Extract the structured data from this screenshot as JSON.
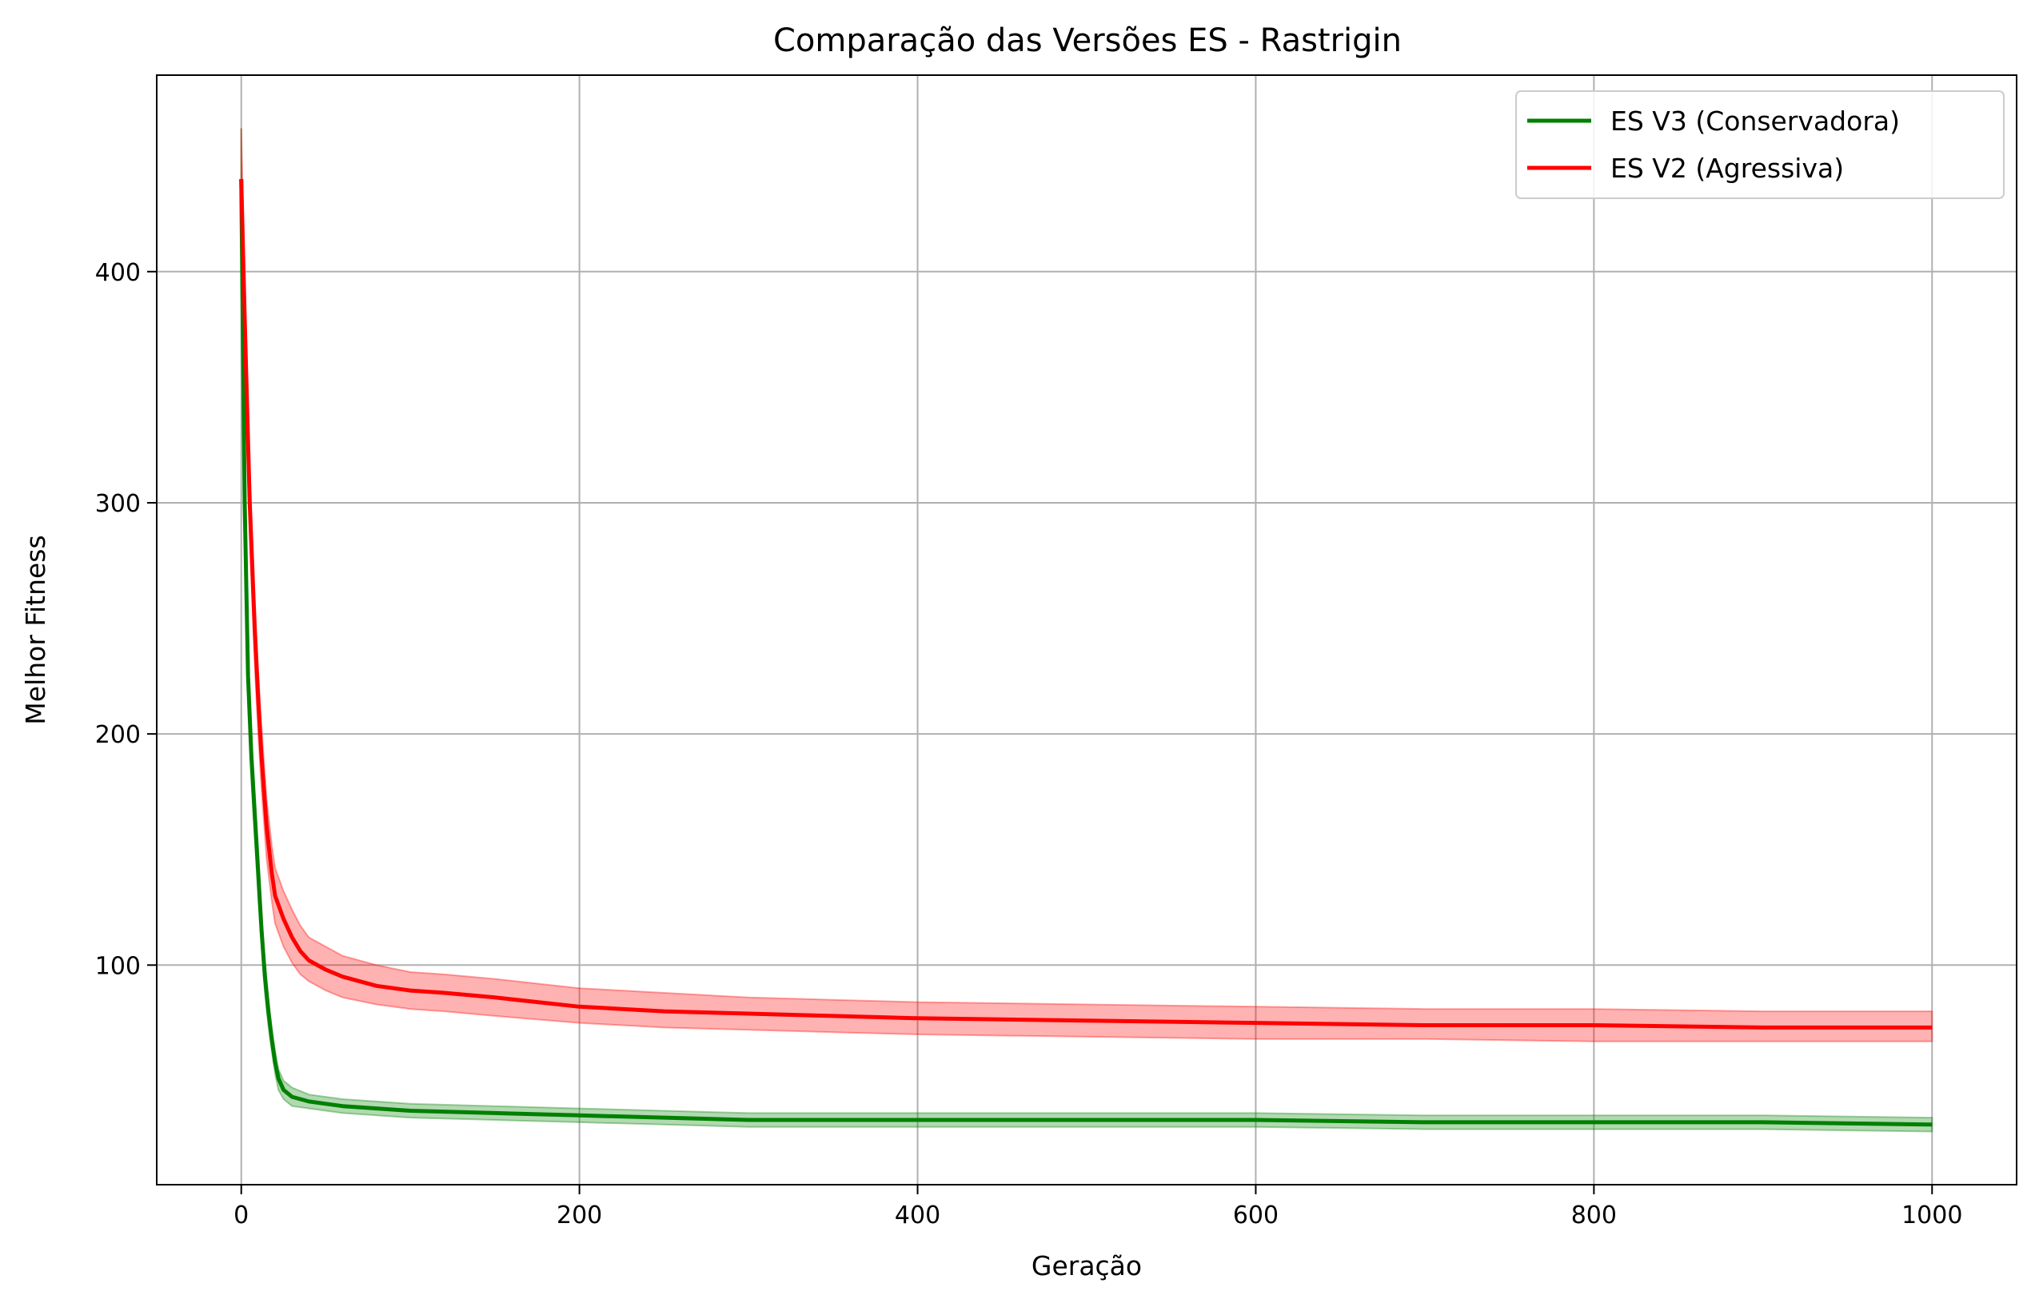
{
  "chart_data": {
    "type": "line",
    "title": "Comparação das Versões ES - Rastrigin",
    "xlabel": "Geração",
    "ylabel": "Melhor Fitness",
    "xlim": [
      -50,
      1050
    ],
    "ylim": [
      5,
      485
    ],
    "xticks": [
      0,
      200,
      400,
      600,
      800,
      1000
    ],
    "yticks": [
      100,
      200,
      300,
      400
    ],
    "grid": true,
    "legend_position": "top-right",
    "series": [
      {
        "name": "ES V3 (Conservadora)",
        "color": "#008000",
        "band_color": "#008000",
        "x": [
          0,
          2,
          4,
          6,
          8,
          10,
          12,
          14,
          16,
          18,
          20,
          22,
          25,
          30,
          40,
          50,
          60,
          80,
          100,
          150,
          200,
          250,
          300,
          350,
          400,
          500,
          600,
          700,
          800,
          900,
          1000
        ],
        "mean": [
          440,
          300,
          225,
          190,
          165,
          140,
          115,
          95,
          80,
          68,
          58,
          51,
          46,
          43,
          41,
          40,
          39,
          38,
          37,
          36,
          35,
          34,
          33,
          33,
          33,
          33,
          33,
          32,
          32,
          32,
          31
        ],
        "lower": [
          420,
          285,
          215,
          180,
          155,
          130,
          108,
          88,
          74,
          63,
          53,
          46,
          42,
          39,
          38,
          37,
          36,
          35,
          34,
          33,
          32,
          31,
          30,
          30,
          30,
          30,
          30,
          29,
          29,
          29,
          28
        ],
        "upper": [
          462,
          315,
          235,
          200,
          175,
          150,
          122,
          102,
          86,
          73,
          63,
          55,
          50,
          47,
          44,
          43,
          42,
          41,
          40,
          39,
          38,
          37,
          36,
          36,
          36,
          36,
          36,
          35,
          35,
          35,
          34
        ]
      },
      {
        "name": "ES V2 (Agressiva)",
        "color": "#ff0000",
        "band_color": "#ff0000",
        "x": [
          0,
          2,
          5,
          8,
          10,
          12,
          15,
          18,
          20,
          25,
          30,
          35,
          40,
          50,
          60,
          80,
          100,
          120,
          150,
          200,
          250,
          300,
          350,
          400,
          500,
          600,
          700,
          800,
          900,
          1000
        ],
        "mean": [
          440,
          380,
          300,
          245,
          215,
          190,
          160,
          140,
          130,
          120,
          112,
          106,
          102,
          98,
          95,
          91,
          89,
          88,
          86,
          82,
          80,
          79,
          78,
          77,
          76,
          75,
          74,
          74,
          73,
          73
        ],
        "lower": [
          425,
          362,
          285,
          230,
          200,
          176,
          146,
          128,
          118,
          108,
          101,
          96,
          93,
          89,
          86,
          83,
          81,
          80,
          78,
          75,
          73,
          72,
          71,
          70,
          69,
          68,
          68,
          67,
          67,
          67
        ],
        "upper": [
          462,
          395,
          315,
          258,
          228,
          203,
          172,
          152,
          142,
          132,
          124,
          117,
          112,
          108,
          104,
          100,
          97,
          96,
          94,
          90,
          88,
          86,
          85,
          84,
          83,
          82,
          81,
          81,
          80,
          80
        ]
      }
    ]
  }
}
